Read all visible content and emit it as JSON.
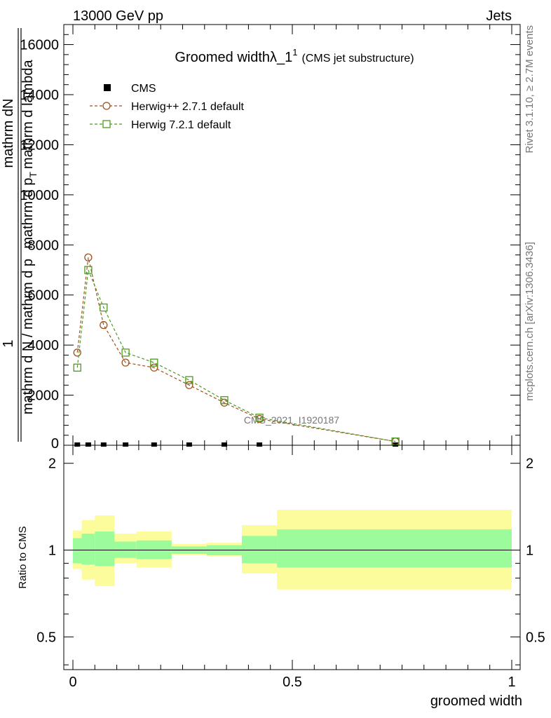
{
  "header": {
    "left": "13000 GeV pp",
    "right": "Jets"
  },
  "side": {
    "top": "Rivet 3.1.10, ≥ 2.7M events",
    "bottom": "mcplots.cern.ch [arXiv:1306.3436]"
  },
  "main": {
    "title": "Groomed width",
    "title_symbol": "λ_1",
    "title_sup": "1",
    "title_suffix": "(CMS jet substructure)",
    "ylabel": {
      "numerator_a": "1",
      "numerator_b": "mathrm dN",
      "denominator_a": "mathrm d N / mathrm d p",
      "denominator_b": "mathrm d p",
      "denominator_sub": "T",
      "denominator_c": "mathrm d lambda"
    },
    "watermark": "CMS_2021_I1920187",
    "legend": [
      {
        "label": "CMS",
        "color": "#000000",
        "marker": "filled-square"
      },
      {
        "label": "Herwig++ 2.7.1 default",
        "color": "#a0501e",
        "marker": "open-circle"
      },
      {
        "label": "Herwig 7.2.1 default",
        "color": "#4b9b1e",
        "marker": "open-square"
      }
    ]
  },
  "ratio": {
    "ylabel": "Ratio to CMS",
    "xlabel": "groomed width"
  },
  "chart_data": [
    {
      "type": "line",
      "title": "Groomed widthλ_1^1 (CMS jet substructure)",
      "xlim": [
        0,
        1
      ],
      "ylim": [
        0,
        16800
      ],
      "y_ticks": [
        {
          "v": 2000,
          "label": "2000"
        },
        {
          "v": 4000,
          "label": "4000"
        },
        {
          "v": 6000,
          "label": "6000"
        },
        {
          "v": 8000,
          "label": "8000"
        },
        {
          "v": 10000,
          "label": "10000"
        },
        {
          "v": 12000,
          "label": "12000"
        },
        {
          "v": 14000,
          "label": "14000"
        },
        {
          "v": 16000,
          "label": "16000"
        }
      ],
      "y_zero_label": "0",
      "series": [
        {
          "name": "CMS",
          "color": "#000000",
          "x": [
            0.01,
            0.035,
            0.07,
            0.12,
            0.185,
            0.265,
            0.345,
            0.425,
            0.735
          ],
          "y": [
            0,
            0,
            0,
            0,
            0,
            0,
            0,
            0,
            0
          ]
        },
        {
          "name": "Herwig++ 2.7.1 default",
          "color": "#a0501e",
          "x": [
            0.01,
            0.035,
            0.07,
            0.12,
            0.185,
            0.265,
            0.345,
            0.425,
            0.735
          ],
          "y": [
            3700,
            7500,
            4800,
            3300,
            3100,
            2400,
            1700,
            1050,
            150
          ]
        },
        {
          "name": "Herwig 7.2.1 default",
          "color": "#4b9b1e",
          "x": [
            0.01,
            0.035,
            0.07,
            0.12,
            0.185,
            0.265,
            0.345,
            0.425,
            0.735
          ],
          "y": [
            3100,
            7000,
            5500,
            3700,
            3300,
            2600,
            1800,
            1100,
            150
          ]
        }
      ]
    },
    {
      "type": "area",
      "ylabel": "Ratio to CMS",
      "xlabel": "groomed width",
      "xlim": [
        0,
        1
      ],
      "ylim": [
        0.385,
        2.31
      ],
      "log_y": true,
      "y_ticks": [
        {
          "v": 0.5,
          "label": "0.5"
        },
        {
          "v": 1,
          "label": "1"
        },
        {
          "v": 2,
          "label": "2"
        }
      ],
      "x_ticks": [
        {
          "v": 0,
          "label": "0"
        },
        {
          "v": 0.5,
          "label": "0.5"
        },
        {
          "v": 1,
          "label": "1"
        }
      ],
      "bins": [
        {
          "x0": 0.0,
          "x1": 0.02,
          "inner": [
            0.9,
            1.1
          ],
          "outer": [
            0.86,
            1.17
          ]
        },
        {
          "x0": 0.02,
          "x1": 0.05,
          "inner": [
            0.89,
            1.14
          ],
          "outer": [
            0.79,
            1.27
          ]
        },
        {
          "x0": 0.05,
          "x1": 0.095,
          "inner": [
            0.88,
            1.16
          ],
          "outer": [
            0.75,
            1.32
          ]
        },
        {
          "x0": 0.095,
          "x1": 0.145,
          "inner": [
            0.94,
            1.07
          ],
          "outer": [
            0.9,
            1.14
          ]
        },
        {
          "x0": 0.145,
          "x1": 0.225,
          "inner": [
            0.93,
            1.08
          ],
          "outer": [
            0.87,
            1.16
          ]
        },
        {
          "x0": 0.225,
          "x1": 0.305,
          "inner": [
            0.97,
            1.03
          ],
          "outer": [
            0.96,
            1.05
          ]
        },
        {
          "x0": 0.305,
          "x1": 0.385,
          "inner": [
            0.96,
            1.04
          ],
          "outer": [
            0.95,
            1.06
          ]
        },
        {
          "x0": 0.385,
          "x1": 0.465,
          "inner": [
            0.9,
            1.12
          ],
          "outer": [
            0.83,
            1.22
          ]
        },
        {
          "x0": 0.465,
          "x1": 1.0,
          "inner": [
            0.87,
            1.18
          ],
          "outer": [
            0.73,
            1.38
          ]
        }
      ],
      "inner_color": "#9cfc9c",
      "outer_color": "#fcfc9c"
    }
  ]
}
